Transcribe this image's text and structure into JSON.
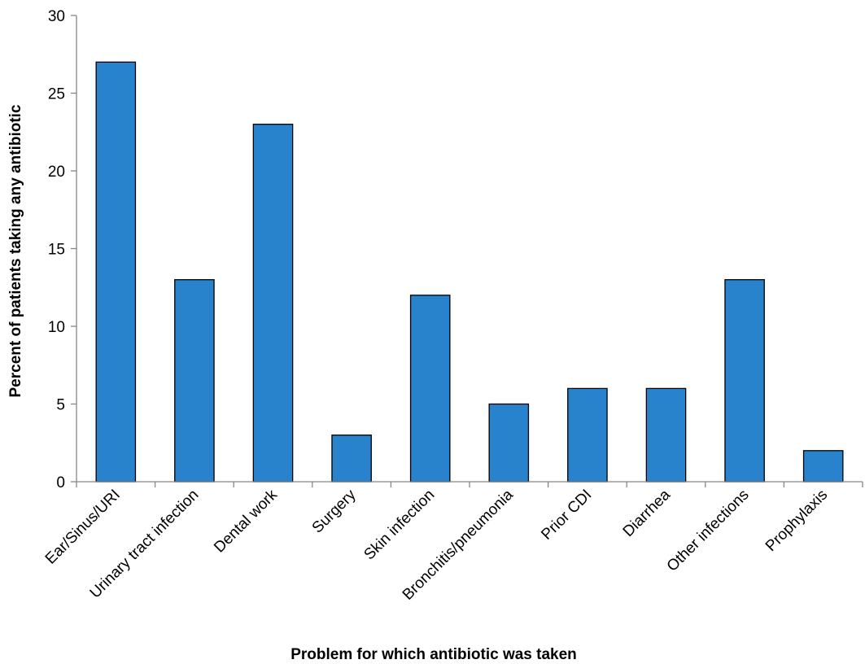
{
  "chart_data": {
    "type": "bar",
    "title": "",
    "xlabel": "Problem for which antibiotic was taken",
    "ylabel": "Percent of patients taking any antibiotic",
    "categories": [
      "Ear/Sinus/URI",
      "Urinary tract infection",
      "Dental work",
      "Surgery",
      "Skin infection",
      "Bronchitis/pneumonia",
      "Prior CDI",
      "Diarrhea",
      "Other infections",
      "Prophylaxis"
    ],
    "values": [
      27,
      13,
      23,
      3,
      12,
      5,
      6,
      6,
      13,
      2
    ],
    "ylim": [
      0,
      30
    ],
    "yticks": [
      0,
      5,
      10,
      15,
      20,
      25,
      30
    ],
    "grid": false,
    "legend": "none",
    "bar_color": "#2882CC",
    "bar_outline_color": "#000000",
    "axis_color": "#868686"
  }
}
